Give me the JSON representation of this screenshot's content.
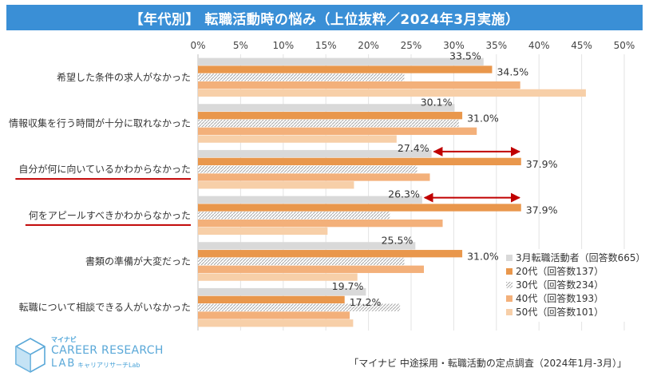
{
  "title": "【年代別】 転職活動時の悩み（上位抜粋／2024年3月実施）",
  "logo": {
    "small": "マイナビ",
    "main": "CAREER RESEARCH",
    "lab": "LAB",
    "kana": "キャリアリサーチLab"
  },
  "source": "「マイナビ 中途採用・転職活動の定点調査（2024年1月-3月）」",
  "colors": {
    "title_bg": "#3a8fd6",
    "s1": "#d9d9d9",
    "s2": "#e9974c",
    "s3": "#d0d0d0",
    "s4": "#f3b07a",
    "s5": "#f7cfa8",
    "highlight": "#c00000"
  },
  "chart_data": {
    "type": "bar",
    "orientation": "horizontal",
    "categories": [
      "希望した条件の求人がなかった",
      "情報収集を行う時間が十分に取れなかった",
      "自分が何に向いているかわからなかった",
      "何をアピールすべきかわからなかった",
      "書類の準備が大変だった",
      "転職について相談できる人がいなかった"
    ],
    "highlighted_categories": [
      2,
      3
    ],
    "series": [
      {
        "name": "3月転職活動者（回答数665）",
        "values": [
          33.5,
          30.1,
          27.4,
          26.3,
          25.5,
          19.7
        ],
        "labeled": true
      },
      {
        "name": "20代（回答数137）",
        "values": [
          34.5,
          31.0,
          37.9,
          37.9,
          31.0,
          17.2
        ],
        "labeled": true
      },
      {
        "name": "30代（回答数234）",
        "values": [
          24.2,
          30.6,
          25.7,
          22.5,
          24.2,
          23.7
        ],
        "labeled": false
      },
      {
        "name": "40代（回答数193）",
        "values": [
          37.8,
          32.7,
          27.2,
          28.7,
          26.5,
          17.8
        ],
        "labeled": false
      },
      {
        "name": "50代（回答数101）",
        "values": [
          45.5,
          23.3,
          18.3,
          15.2,
          18.7,
          18.2
        ],
        "labeled": false
      }
    ],
    "label_texts": [
      [
        "33.5%",
        "30.1%",
        "27.4%",
        "26.3%",
        "25.5%",
        "19.7%"
      ],
      [
        "34.5%",
        "31.0%",
        "37.9%",
        "37.9%",
        "31.0%",
        "17.2%"
      ]
    ],
    "arrows": [
      {
        "category": 2,
        "from": 27.4,
        "to": 37.9
      },
      {
        "category": 3,
        "from": 26.3,
        "to": 37.9
      }
    ],
    "xlim": [
      0,
      50
    ],
    "xticks": [
      "0%",
      "5%",
      "10%",
      "15%",
      "20%",
      "25%",
      "30%",
      "35%",
      "40%",
      "45%",
      "50%"
    ],
    "grid": true,
    "legend_position": "bottom-right"
  }
}
